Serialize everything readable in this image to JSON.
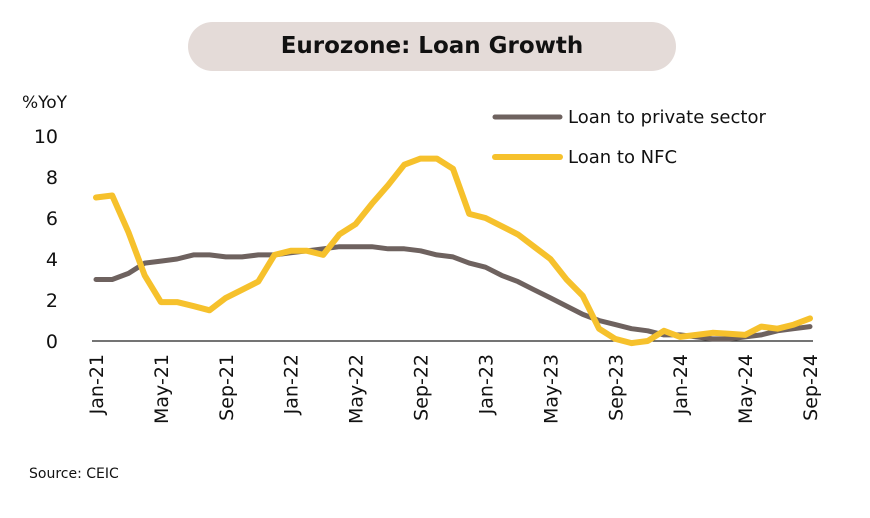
{
  "chart_data": {
    "type": "line",
    "title": "Eurozone: Loan Growth",
    "ylabel": "%YoY",
    "xlabel": "",
    "ylim": [
      0,
      10
    ],
    "yticks": [
      "0",
      "2",
      "4",
      "6",
      "8",
      "10"
    ],
    "xtick_labels": [
      "Jan-21",
      "May-21",
      "Sep-21",
      "Jan-22",
      "May-22",
      "Sep-22",
      "Jan-23",
      "May-23",
      "Sep-23",
      "Jan-24",
      "May-24",
      "Sep-24"
    ],
    "x": [
      "Jan-21",
      "Feb-21",
      "Mar-21",
      "Apr-21",
      "May-21",
      "Jun-21",
      "Jul-21",
      "Aug-21",
      "Sep-21",
      "Oct-21",
      "Nov-21",
      "Dec-21",
      "Jan-22",
      "Feb-22",
      "Mar-22",
      "Apr-22",
      "May-22",
      "Jun-22",
      "Jul-22",
      "Aug-22",
      "Sep-22",
      "Oct-22",
      "Nov-22",
      "Dec-22",
      "Jan-23",
      "Feb-23",
      "Mar-23",
      "Apr-23",
      "May-23",
      "Jun-23",
      "Jul-23",
      "Aug-23",
      "Sep-23",
      "Oct-23",
      "Nov-23",
      "Dec-23",
      "Jan-24",
      "Feb-24",
      "Mar-24",
      "Apr-24",
      "May-24",
      "Jun-24",
      "Jul-24",
      "Aug-24",
      "Sep-24"
    ],
    "series": [
      {
        "name": "Loan to private sector",
        "color": "#6e625f",
        "values": [
          3.0,
          3.0,
          3.3,
          3.8,
          3.9,
          4.0,
          4.2,
          4.2,
          4.1,
          4.1,
          4.2,
          4.2,
          4.3,
          4.4,
          4.5,
          4.6,
          4.6,
          4.6,
          4.5,
          4.5,
          4.4,
          4.2,
          4.1,
          3.8,
          3.6,
          3.2,
          2.9,
          2.5,
          2.1,
          1.7,
          1.3,
          1.0,
          0.8,
          0.6,
          0.5,
          0.3,
          0.3,
          0.2,
          0.1,
          0.1,
          0.2,
          0.3,
          0.5,
          0.6,
          0.7
        ]
      },
      {
        "name": "Loan to NFC",
        "color": "#f6c12c",
        "values": [
          7.0,
          7.1,
          5.3,
          3.2,
          1.9,
          1.9,
          1.7,
          1.5,
          2.1,
          2.5,
          2.9,
          4.2,
          4.4,
          4.4,
          4.2,
          5.2,
          5.7,
          6.7,
          7.6,
          8.6,
          8.9,
          8.9,
          8.4,
          6.2,
          6.0,
          5.6,
          5.2,
          4.6,
          4.0,
          3.0,
          2.2,
          0.6,
          0.1,
          -0.1,
          0.0,
          0.5,
          0.2,
          0.3,
          0.4,
          0.35,
          0.3,
          0.7,
          0.6,
          0.8,
          1.1
        ]
      }
    ],
    "legend_position": "top-right",
    "grid": false
  },
  "source": "Source: CEIC"
}
